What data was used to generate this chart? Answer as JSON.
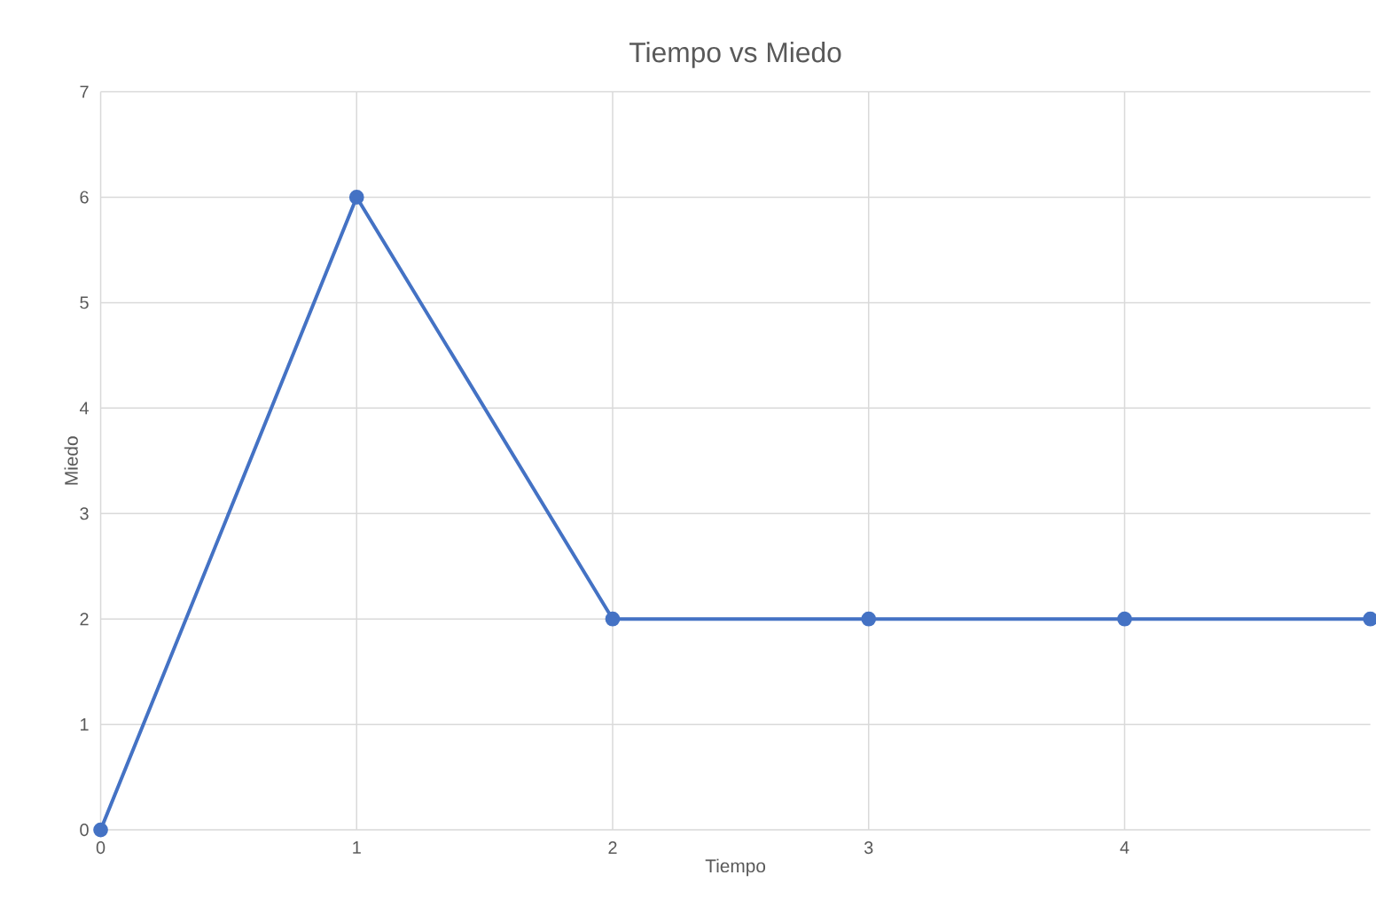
{
  "chart_data": {
    "type": "line",
    "title": "Tiempo vs Miedo",
    "xlabel": "Tiempo",
    "ylabel": "Miedo",
    "x": [
      0,
      1,
      2,
      3,
      4,
      4.96
    ],
    "series": [
      {
        "color": "#4472c4",
        "values": [
          0,
          6,
          2,
          2,
          2,
          2
        ]
      }
    ],
    "xlim": [
      0,
      4.96
    ],
    "ylim": [
      0,
      7
    ],
    "xticks": [
      0,
      1,
      2,
      3,
      4
    ],
    "yticks": [
      0,
      1,
      2,
      3,
      4,
      5,
      6,
      7
    ],
    "grid": true,
    "marker": "circle",
    "line_style": "solid"
  }
}
